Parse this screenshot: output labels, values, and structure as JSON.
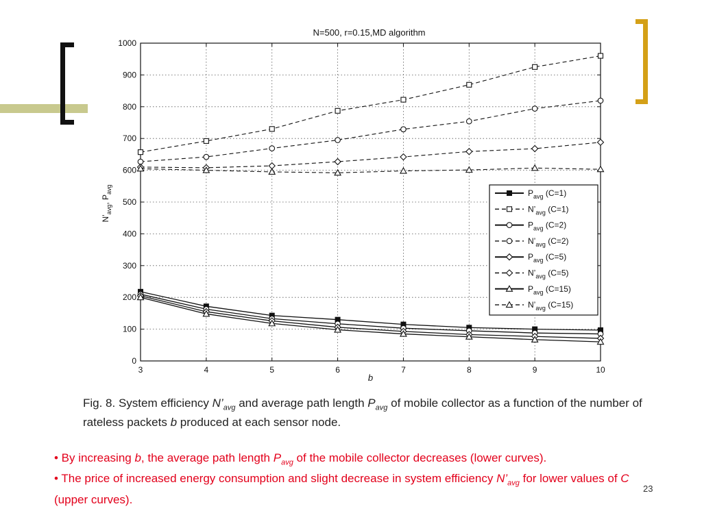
{
  "slide": {
    "page_number": "23",
    "caption": {
      "p1": "Fig. 8. System efficiency ",
      "sym_n": "N’",
      "sub_n": "avg",
      "p2": " and average path length ",
      "sym_p": "P",
      "sub_p": "avg",
      "p3": " of mobile collector as a function of the number of rateless packets ",
      "sym_b": "b",
      "p4": " produced at each sensor node."
    },
    "bullet1": {
      "p1": "• By increasing ",
      "sym_b": "b",
      "p2": ", the average path length ",
      "sym_p": "P",
      "sub_p": "avg",
      "p3": " of the mobile collector decreases (lower curves)."
    },
    "bullet2": {
      "p1": "• The price of increased energy consumption and slight decrease in system efficiency ",
      "sym_n": "N’",
      "sub_n": "avg",
      "p2": " for lower values of ",
      "sym_c": "C",
      "p3": " (upper curves)."
    }
  },
  "colors": {
    "accent_bar": "#c8c98e",
    "right_bracket": "#d4a017",
    "bullet_text": "#e3001b"
  },
  "chart_data": {
    "type": "line",
    "title": "N=500, r=0.15,MD algorithm",
    "xlabel": "b",
    "ylabel_parts": {
      "n": "N’",
      "n_sub": "avg",
      "sep": ", ",
      "p": "P",
      "p_sub": "avg"
    },
    "x": [
      3,
      4,
      5,
      6,
      7,
      8,
      9,
      10
    ],
    "xlim": [
      3,
      10
    ],
    "ylim": [
      0,
      1000
    ],
    "xticks": [
      "3",
      "4",
      "5",
      "6",
      "7",
      "8",
      "9",
      "10"
    ],
    "yticks": [
      "0",
      "100",
      "200",
      "300",
      "400",
      "500",
      "600",
      "700",
      "800",
      "900",
      "1000"
    ],
    "grid": true,
    "legend_position": "right-center",
    "series": [
      {
        "name": "P",
        "name_sub": "avg",
        "suffix": " (C=1)",
        "marker": "square-filled",
        "dash": "solid",
        "values": [
          218,
          172,
          143,
          130,
          115,
          105,
          100,
          97
        ]
      },
      {
        "name": "N’",
        "name_sub": "avg",
        "suffix": " (C=1)",
        "marker": "square",
        "dash": "dashed",
        "values": [
          657,
          692,
          730,
          787,
          822,
          869,
          925,
          960
        ]
      },
      {
        "name": "P",
        "name_sub": "avg",
        "suffix": " (C=2)",
        "marker": "circle",
        "dash": "solid",
        "values": [
          210,
          163,
          133,
          117,
          103,
          95,
          88,
          85
        ]
      },
      {
        "name": "N’",
        "name_sub": "avg",
        "suffix": " (C=2)",
        "marker": "circle",
        "dash": "dashed",
        "values": [
          627,
          642,
          669,
          695,
          729,
          754,
          794,
          819
        ]
      },
      {
        "name": "P",
        "name_sub": "avg",
        "suffix": " (C=5)",
        "marker": "diamond",
        "dash": "solid",
        "values": [
          205,
          155,
          126,
          106,
          93,
          83,
          77,
          71
        ]
      },
      {
        "name": "N’",
        "name_sub": "avg",
        "suffix": " (C=5)",
        "marker": "diamond",
        "dash": "dashed",
        "values": [
          610,
          608,
          614,
          627,
          642,
          659,
          668,
          688
        ]
      },
      {
        "name": "P",
        "name_sub": "avg",
        "suffix": " (C=15)",
        "marker": "triangle",
        "dash": "solid",
        "values": [
          200,
          148,
          118,
          98,
          85,
          76,
          67,
          60
        ]
      },
      {
        "name": "N’",
        "name_sub": "avg",
        "suffix": " (C=15)",
        "marker": "triangle",
        "dash": "dashed",
        "values": [
          605,
          600,
          595,
          592,
          598,
          601,
          607,
          603
        ]
      }
    ]
  }
}
